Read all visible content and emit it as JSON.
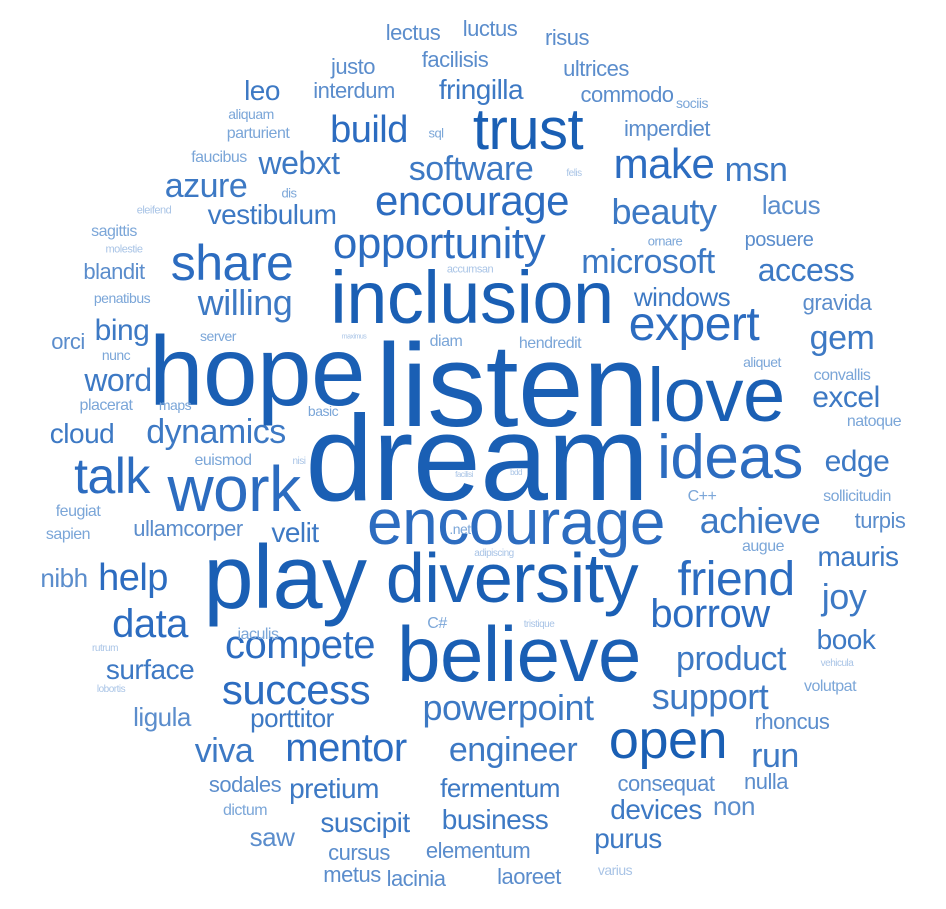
{
  "palette": [
    "#1a5fb4",
    "#2c6cc0",
    "#3d79c4",
    "#5b8dcc",
    "#7ba6d8",
    "#a9c4e6"
  ],
  "words": [
    {
      "text": "dream",
      "weight": 1.0,
      "shade": 0
    },
    {
      "text": "listen",
      "weight": 0.97,
      "shade": 0
    },
    {
      "text": "hope",
      "weight": 0.9,
      "shade": 0
    },
    {
      "text": "play",
      "weight": 0.88,
      "shade": 0
    },
    {
      "text": "believe",
      "weight": 0.84,
      "shade": 0
    },
    {
      "text": "love",
      "weight": 0.82,
      "shade": 0
    },
    {
      "text": "inclusion",
      "weight": 0.75,
      "shade": 0
    },
    {
      "text": "diversity",
      "weight": 0.72,
      "shade": 0
    },
    {
      "text": "work",
      "weight": 0.68,
      "shade": 1
    },
    {
      "text": "encourage",
      "weight": 0.65,
      "shade": 1
    },
    {
      "text": "ideas",
      "weight": 0.64,
      "shade": 1
    },
    {
      "text": "trust",
      "weight": 0.6,
      "shade": 0
    },
    {
      "text": "open",
      "weight": 0.55,
      "shade": 0
    },
    {
      "text": "talk",
      "weight": 0.52,
      "shade": 1
    },
    {
      "text": "share",
      "weight": 0.5,
      "shade": 1
    },
    {
      "text": "expert",
      "weight": 0.48,
      "shade": 1
    },
    {
      "text": "friend",
      "weight": 0.47,
      "shade": 1
    },
    {
      "text": "opportunity",
      "weight": 0.44,
      "shade": 1
    },
    {
      "text": "encourage",
      "weight": 0.42,
      "shade": 1
    },
    {
      "text": "make",
      "weight": 0.42,
      "shade": 1
    },
    {
      "text": "success",
      "weight": 0.41,
      "shade": 1
    },
    {
      "text": "data",
      "weight": 0.4,
      "shade": 1
    },
    {
      "text": "mentor",
      "weight": 0.4,
      "shade": 1
    },
    {
      "text": "borrow",
      "weight": 0.4,
      "shade": 1
    },
    {
      "text": "compete",
      "weight": 0.39,
      "shade": 1
    },
    {
      "text": "help",
      "weight": 0.38,
      "shade": 1
    },
    {
      "text": "build",
      "weight": 0.38,
      "shade": 1
    },
    {
      "text": "beauty",
      "weight": 0.37,
      "shade": 2
    },
    {
      "text": "achieve",
      "weight": 0.37,
      "shade": 2
    },
    {
      "text": "joy",
      "weight": 0.36,
      "shade": 2
    },
    {
      "text": "willing",
      "weight": 0.35,
      "shade": 2
    },
    {
      "text": "powerpoint",
      "weight": 0.34,
      "shade": 2
    },
    {
      "text": "support",
      "weight": 0.34,
      "shade": 2
    },
    {
      "text": "engineer",
      "weight": 0.33,
      "shade": 2
    },
    {
      "text": "software",
      "weight": 0.33,
      "shade": 2
    },
    {
      "text": "microsoft",
      "weight": 0.32,
      "shade": 2
    },
    {
      "text": "product",
      "weight": 0.32,
      "shade": 2
    },
    {
      "text": "dynamics",
      "weight": 0.32,
      "shade": 2
    },
    {
      "text": "gem",
      "weight": 0.32,
      "shade": 2
    },
    {
      "text": "azure",
      "weight": 0.31,
      "shade": 2
    },
    {
      "text": "msn",
      "weight": 0.31,
      "shade": 2
    },
    {
      "text": "run",
      "weight": 0.31,
      "shade": 2
    },
    {
      "text": "access",
      "weight": 0.3,
      "shade": 2
    },
    {
      "text": "word",
      "weight": 0.3,
      "shade": 2
    },
    {
      "text": "viva",
      "weight": 0.3,
      "shade": 2
    },
    {
      "text": "webxt",
      "weight": 0.29,
      "shade": 2
    },
    {
      "text": "excel",
      "weight": 0.29,
      "shade": 2
    },
    {
      "text": "bing",
      "weight": 0.28,
      "shade": 2
    },
    {
      "text": "edge",
      "weight": 0.28,
      "shade": 2
    },
    {
      "text": "surface",
      "weight": 0.27,
      "shade": 2
    },
    {
      "text": "book",
      "weight": 0.26,
      "shade": 2
    },
    {
      "text": "fermentum",
      "weight": 0.26,
      "shade": 2
    },
    {
      "text": "pretium",
      "weight": 0.26,
      "shade": 2
    },
    {
      "text": "fringilla",
      "weight": 0.26,
      "shade": 2
    },
    {
      "text": "suscipit",
      "weight": 0.26,
      "shade": 2
    },
    {
      "text": "business",
      "weight": 0.26,
      "shade": 2
    },
    {
      "text": "devices",
      "weight": 0.26,
      "shade": 2
    },
    {
      "text": "mauris",
      "weight": 0.25,
      "shade": 2
    },
    {
      "text": "velit",
      "weight": 0.25,
      "shade": 2
    },
    {
      "text": "windows",
      "weight": 0.25,
      "shade": 2
    },
    {
      "text": "vestibulum",
      "weight": 0.25,
      "shade": 2
    },
    {
      "text": "leo",
      "weight": 0.25,
      "shade": 2
    },
    {
      "text": "cloud",
      "weight": 0.25,
      "shade": 2
    },
    {
      "text": "purus",
      "weight": 0.25,
      "shade": 2
    },
    {
      "text": "porttitor",
      "weight": 0.24,
      "shade": 2
    },
    {
      "text": "lacus",
      "weight": 0.24,
      "shade": 3
    },
    {
      "text": "ligula",
      "weight": 0.24,
      "shade": 3
    },
    {
      "text": "nibh",
      "weight": 0.24,
      "shade": 3
    },
    {
      "text": "saw",
      "weight": 0.24,
      "shade": 3
    },
    {
      "text": "non",
      "weight": 0.24,
      "shade": 3
    },
    {
      "text": "rhoncus",
      "weight": 0.22,
      "shade": 3
    },
    {
      "text": "turpis",
      "weight": 0.22,
      "shade": 3
    },
    {
      "text": "gravida",
      "weight": 0.2,
      "shade": 3
    },
    {
      "text": "ullamcorper",
      "weight": 0.2,
      "shade": 3
    },
    {
      "text": "interdum",
      "weight": 0.2,
      "shade": 3
    },
    {
      "text": "elementum",
      "weight": 0.2,
      "shade": 3
    },
    {
      "text": "lacinia",
      "weight": 0.2,
      "shade": 3
    },
    {
      "text": "laoreet",
      "weight": 0.2,
      "shade": 3
    },
    {
      "text": "metus",
      "weight": 0.2,
      "shade": 3
    },
    {
      "text": "cursus",
      "weight": 0.2,
      "shade": 3
    },
    {
      "text": "sodales",
      "weight": 0.2,
      "shade": 3
    },
    {
      "text": "nulla",
      "weight": 0.2,
      "shade": 3
    },
    {
      "text": "consequat",
      "weight": 0.2,
      "shade": 3
    },
    {
      "text": "blandit",
      "weight": 0.2,
      "shade": 3
    },
    {
      "text": "imperdiet",
      "weight": 0.2,
      "shade": 3
    },
    {
      "text": "orci",
      "weight": 0.2,
      "shade": 3
    },
    {
      "text": "posuere",
      "weight": 0.19,
      "shade": 3
    },
    {
      "text": "commodo",
      "weight": 0.2,
      "shade": 3
    },
    {
      "text": "ultrices",
      "weight": 0.2,
      "shade": 3
    },
    {
      "text": "facilisis",
      "weight": 0.2,
      "shade": 3
    },
    {
      "text": "lectus",
      "weight": 0.2,
      "shade": 3
    },
    {
      "text": "luctus",
      "weight": 0.2,
      "shade": 3
    },
    {
      "text": "risus",
      "weight": 0.2,
      "shade": 3
    },
    {
      "text": "justo",
      "weight": 0.2,
      "shade": 3
    },
    {
      "text": "volutpat",
      "weight": 0.16,
      "shade": 4
    },
    {
      "text": "dictum",
      "weight": 0.16,
      "shade": 4
    },
    {
      "text": "convallis",
      "weight": 0.16,
      "shade": 4
    },
    {
      "text": "natoque",
      "weight": 0.16,
      "shade": 4
    },
    {
      "text": "sollicitudin",
      "weight": 0.16,
      "shade": 4
    },
    {
      "text": "augue",
      "weight": 0.15,
      "shade": 4
    },
    {
      "text": "aliquet",
      "weight": 0.15,
      "shade": 4
    },
    {
      "text": "iaculis",
      "weight": 0.16,
      "shade": 4
    },
    {
      "text": "feugiat",
      "weight": 0.15,
      "shade": 4
    },
    {
      "text": "sapien",
      "weight": 0.15,
      "shade": 4
    },
    {
      "text": "euismod",
      "weight": 0.15,
      "shade": 4
    },
    {
      "text": "placerat",
      "weight": 0.15,
      "shade": 4
    },
    {
      "text": "maps",
      "weight": 0.15,
      "shade": 4
    },
    {
      "text": "basic",
      "weight": 0.15,
      "shade": 4
    },
    {
      "text": "diam",
      "weight": 0.15,
      "shade": 4
    },
    {
      "text": "hendredit",
      "weight": 0.15,
      "shade": 4
    },
    {
      "text": "nunc",
      "weight": 0.14,
      "shade": 4
    },
    {
      "text": "server",
      "weight": 0.14,
      "shade": 4
    },
    {
      "text": "penatibus",
      "weight": 0.14,
      "shade": 4
    },
    {
      "text": "sagittis",
      "weight": 0.14,
      "shade": 4
    },
    {
      "text": "faucibus",
      "weight": 0.15,
      "shade": 4
    },
    {
      "text": "parturient",
      "weight": 0.15,
      "shade": 4
    },
    {
      "text": "aliquam",
      "weight": 0.14,
      "shade": 4
    },
    {
      "text": "sociis",
      "weight": 0.14,
      "shade": 4
    },
    {
      "text": "C++",
      "weight": 0.15,
      "shade": 4
    },
    {
      "text": "C#",
      "weight": 0.15,
      "shade": 4
    },
    {
      "text": ".net",
      "weight": 0.14,
      "shade": 4
    },
    {
      "text": "sql",
      "weight": 0.12,
      "shade": 4
    },
    {
      "text": "dis",
      "weight": 0.13,
      "shade": 4
    },
    {
      "text": "ornare",
      "weight": 0.13,
      "shade": 4
    },
    {
      "text": "molestie",
      "weight": 0.1,
      "shade": 5
    },
    {
      "text": "eleifend",
      "weight": 0.09,
      "shade": 5
    },
    {
      "text": "felis",
      "weight": 0.08,
      "shade": 5
    },
    {
      "text": "accumsan",
      "weight": 0.09,
      "shade": 5
    },
    {
      "text": "maximus",
      "weight": 0.06,
      "shade": 5
    },
    {
      "text": "nisi",
      "weight": 0.08,
      "shade": 5
    },
    {
      "text": "facilisi",
      "weight": 0.06,
      "shade": 5
    },
    {
      "text": "bdd",
      "weight": 0.06,
      "shade": 5
    },
    {
      "text": "adipiscing",
      "weight": 0.09,
      "shade": 5
    },
    {
      "text": "tristique",
      "weight": 0.09,
      "shade": 5
    },
    {
      "text": "rutrum",
      "weight": 0.09,
      "shade": 5
    },
    {
      "text": "lobortis",
      "weight": 0.09,
      "shade": 5
    },
    {
      "text": "vehicula",
      "weight": 0.08,
      "shade": 5
    },
    {
      "text": "varius",
      "weight": 0.13,
      "shade": 5
    }
  ]
}
